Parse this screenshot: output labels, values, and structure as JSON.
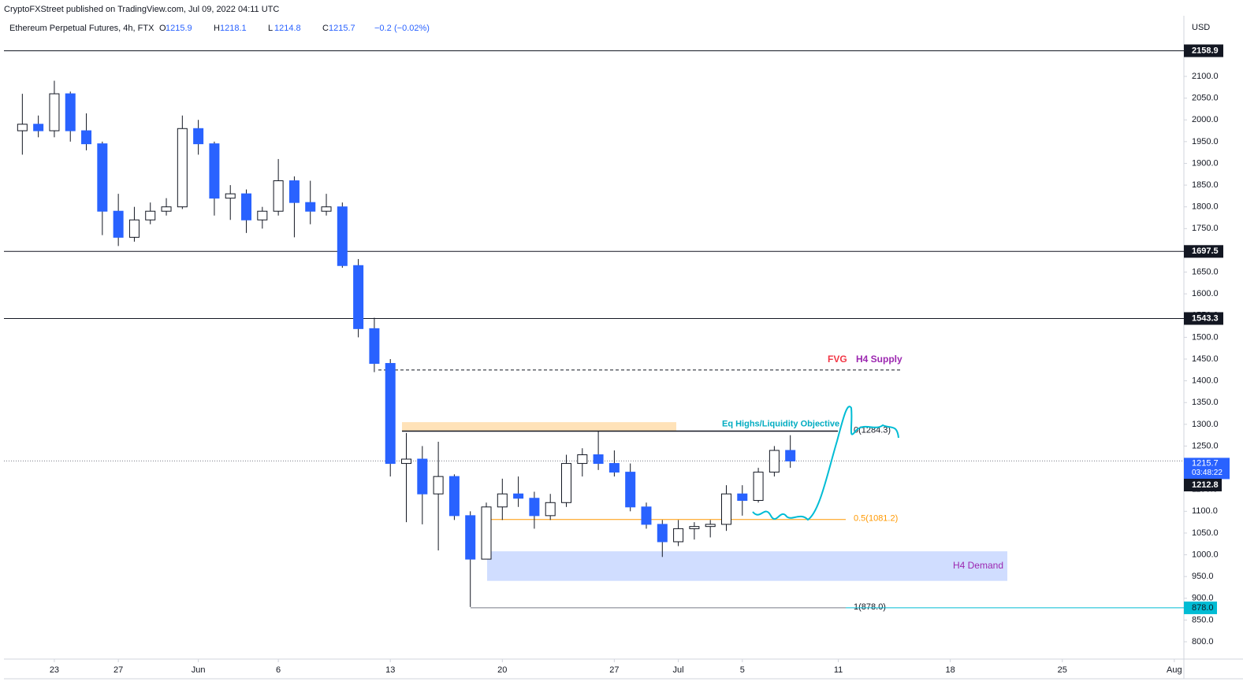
{
  "header": {
    "publisher": "CryptoFXStreet published on TradingView.com, Jul 09, 2022 04:11 UTC"
  },
  "chart_data": {
    "type": "candlestick",
    "title": "Ethereum Perpetual Futures, 4h, FTX",
    "legend_values": [
      {
        "letter": "O",
        "value": 1215.9
      },
      {
        "letter": "H",
        "value": 1218.1
      },
      {
        "letter": "L",
        "value": 1214.8
      },
      {
        "letter": "C",
        "value": 1215.7
      }
    ],
    "change": {
      "value": -0.2,
      "label": "−0.2"
    },
    "change_pct": {
      "value": -0.02,
      "label": "(−0.02%)"
    },
    "currency": "USD",
    "up_color": "#ffffff",
    "down_color": "#2962ff",
    "outline_color": "#131722",
    "x": [
      -2,
      -1,
      0,
      1,
      2,
      3,
      4,
      5,
      6,
      7,
      8,
      9,
      10,
      11,
      12,
      13,
      14,
      15,
      16,
      17,
      18,
      19,
      20,
      21,
      22,
      23,
      24,
      25,
      26,
      27,
      28,
      29,
      30,
      31,
      32,
      33,
      34,
      35,
      36,
      37,
      38,
      39,
      40,
      41,
      42,
      43,
      44,
      45,
      46
    ],
    "ohlc": [
      [
        1975,
        2060,
        1920,
        1990
      ],
      [
        1990,
        2010,
        1960,
        1975
      ],
      [
        1975,
        2090,
        1960,
        2060
      ],
      [
        2060,
        2065,
        1950,
        1975
      ],
      [
        1975,
        2015,
        1930,
        1945
      ],
      [
        1945,
        1950,
        1735,
        1790
      ],
      [
        1790,
        1830,
        1710,
        1730
      ],
      [
        1730,
        1800,
        1720,
        1770
      ],
      [
        1770,
        1810,
        1760,
        1790
      ],
      [
        1790,
        1820,
        1780,
        1800
      ],
      [
        1800,
        2010,
        1795,
        1980
      ],
      [
        1980,
        2000,
        1920,
        1945
      ],
      [
        1945,
        1950,
        1780,
        1820
      ],
      [
        1820,
        1850,
        1770,
        1830
      ],
      [
        1830,
        1840,
        1740,
        1770
      ],
      [
        1770,
        1800,
        1750,
        1790
      ],
      [
        1790,
        1910,
        1780,
        1860
      ],
      [
        1860,
        1870,
        1730,
        1810
      ],
      [
        1810,
        1860,
        1760,
        1790
      ],
      [
        1790,
        1830,
        1780,
        1800
      ],
      [
        1800,
        1810,
        1660,
        1665
      ],
      [
        1665,
        1680,
        1500,
        1520
      ],
      [
        1520,
        1545,
        1420,
        1440
      ],
      [
        1440,
        1450,
        1180,
        1210
      ],
      [
        1210,
        1280,
        1075,
        1220
      ],
      [
        1220,
        1250,
        1070,
        1140
      ],
      [
        1140,
        1260,
        1010,
        1180
      ],
      [
        1180,
        1185,
        1080,
        1090
      ],
      [
        1090,
        1100,
        880,
        990
      ],
      [
        990,
        1120,
        990,
        1110
      ],
      [
        1110,
        1175,
        1080,
        1140
      ],
      [
        1140,
        1180,
        1110,
        1130
      ],
      [
        1130,
        1145,
        1060,
        1090
      ],
      [
        1090,
        1140,
        1080,
        1120
      ],
      [
        1120,
        1230,
        1110,
        1210
      ],
      [
        1210,
        1245,
        1180,
        1230
      ],
      [
        1230,
        1285,
        1195,
        1210
      ],
      [
        1210,
        1240,
        1180,
        1190
      ],
      [
        1190,
        1210,
        1100,
        1110
      ],
      [
        1110,
        1120,
        1060,
        1070
      ],
      [
        1070,
        1080,
        995,
        1030
      ],
      [
        1030,
        1080,
        1020,
        1060
      ],
      [
        1060,
        1075,
        1035,
        1065
      ],
      [
        1065,
        1080,
        1040,
        1070
      ],
      [
        1070,
        1160,
        1055,
        1140
      ],
      [
        1140,
        1160,
        1090,
        1125
      ],
      [
        1125,
        1200,
        1120,
        1190
      ],
      [
        1190,
        1250,
        1180,
        1240
      ],
      [
        1240,
        1275,
        1200,
        1215.7
      ]
    ],
    "xlim": [
      -3.15,
      70.5
    ],
    "xticks": [
      {
        "value": 0,
        "label": "23"
      },
      {
        "value": 4,
        "label": "27"
      },
      {
        "value": 9,
        "label": "Jun"
      },
      {
        "value": 14,
        "label": "6"
      },
      {
        "value": 21,
        "label": "13"
      },
      {
        "value": 28,
        "label": "20"
      },
      {
        "value": 35,
        "label": "27"
      },
      {
        "value": 39,
        "label": "Jul"
      },
      {
        "value": 43,
        "label": "5"
      },
      {
        "value": 49,
        "label": "11"
      },
      {
        "value": 56,
        "label": "18"
      },
      {
        "value": 63,
        "label": "25"
      },
      {
        "value": 70,
        "label": "Aug"
      }
    ],
    "ylim": [
      760.2,
      2185.1
    ],
    "yticks": [
      {
        "value": 800,
        "label": "800.0"
      },
      {
        "value": 850,
        "label": "850.0"
      },
      {
        "value": 900,
        "label": "900.0"
      },
      {
        "value": 950,
        "label": "950.0"
      },
      {
        "value": 1000,
        "label": "1000.0"
      },
      {
        "value": 1050,
        "label": "1050.0"
      },
      {
        "value": 1100,
        "label": "1100.0"
      },
      {
        "value": 1150,
        "label": "1150.0"
      },
      {
        "value": 1200,
        "label": "1200.0"
      },
      {
        "value": 1250,
        "label": "1250.0"
      },
      {
        "value": 1300,
        "label": "1300.0"
      },
      {
        "value": 1350,
        "label": "1350.0"
      },
      {
        "value": 1400,
        "label": "1400.0"
      },
      {
        "value": 1450,
        "label": "1450.0"
      },
      {
        "value": 1500,
        "label": "1500.0"
      },
      {
        "value": 1550,
        "label": "1550.0"
      },
      {
        "value": 1600,
        "label": "1600.0"
      },
      {
        "value": 1650,
        "label": "1650.0"
      },
      {
        "value": 1700,
        "label": "1700.0"
      },
      {
        "value": 1750,
        "label": "1750.0"
      },
      {
        "value": 1800,
        "label": "1800.0"
      },
      {
        "value": 1850,
        "label": "1850.0"
      },
      {
        "value": 1900,
        "label": "1900.0"
      },
      {
        "value": 1950,
        "label": "1950.0"
      },
      {
        "value": 2000,
        "label": "2000.0"
      },
      {
        "value": 2050,
        "label": "2050.0"
      },
      {
        "value": 2100,
        "label": "2100.0"
      }
    ],
    "levels": [
      {
        "value": 2158.9,
        "label": "2158.9"
      },
      {
        "value": 1697.5,
        "label": "1697.5"
      },
      {
        "value": 1543.3,
        "label": "1543.3"
      }
    ],
    "supply": {
      "value": 1425,
      "fvg_label": "FVG",
      "label": "H4 Supply"
    },
    "liquidity_zone": [
      1285,
      1305
    ],
    "liquidity_label": "Eq Highs/Liquidity Objective",
    "fib": [
      {
        "value": 1284.3,
        "label": "0(1284.3)"
      },
      {
        "value": 1081.2,
        "label": "0.5(1081.2)"
      },
      {
        "value": 878.0,
        "label": "1(878.0)"
      }
    ],
    "demand": {
      "range": [
        940,
        1008
      ],
      "label": "H4 Demand"
    },
    "last_price": {
      "value": 1215.7,
      "label": "1215.7",
      "countdown": "03:48:22"
    },
    "prev_price": {
      "value": 1212.8,
      "label": "1212.8"
    },
    "low_price": {
      "value": 878.0,
      "label": "878.0"
    }
  }
}
